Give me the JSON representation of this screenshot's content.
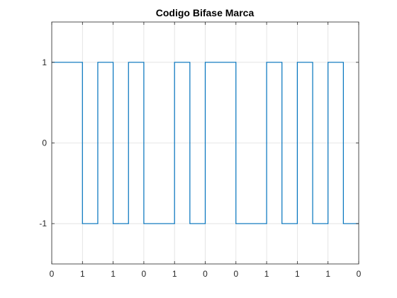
{
  "chart_data": {
    "type": "line",
    "title": "Codigo Bifase Marca",
    "xlabel": "",
    "ylabel": "",
    "xlim": [
      0,
      20
    ],
    "ylim": [
      -1.5,
      1.5
    ],
    "grid": true,
    "x_ticks": [
      0,
      2,
      4,
      6,
      8,
      10,
      12,
      14,
      16,
      18,
      20
    ],
    "x_tick_labels": [
      "0",
      "1",
      "1",
      "0",
      "1",
      "0",
      "0",
      "1",
      "1",
      "1",
      "0"
    ],
    "y_ticks": [
      -1,
      0,
      1
    ],
    "y_tick_labels": [
      "-1",
      "0",
      "1"
    ],
    "series": [
      {
        "color": "#0072bd",
        "step": true,
        "x": [
          0,
          2,
          3,
          4,
          5,
          6,
          8,
          9,
          10,
          12,
          14,
          15,
          16,
          17,
          18,
          19,
          20
        ],
        "values": [
          1,
          -1,
          1,
          -1,
          1,
          -1,
          1,
          -1,
          1,
          -1,
          1,
          -1,
          1,
          -1,
          1,
          -1,
          -1
        ]
      }
    ]
  }
}
